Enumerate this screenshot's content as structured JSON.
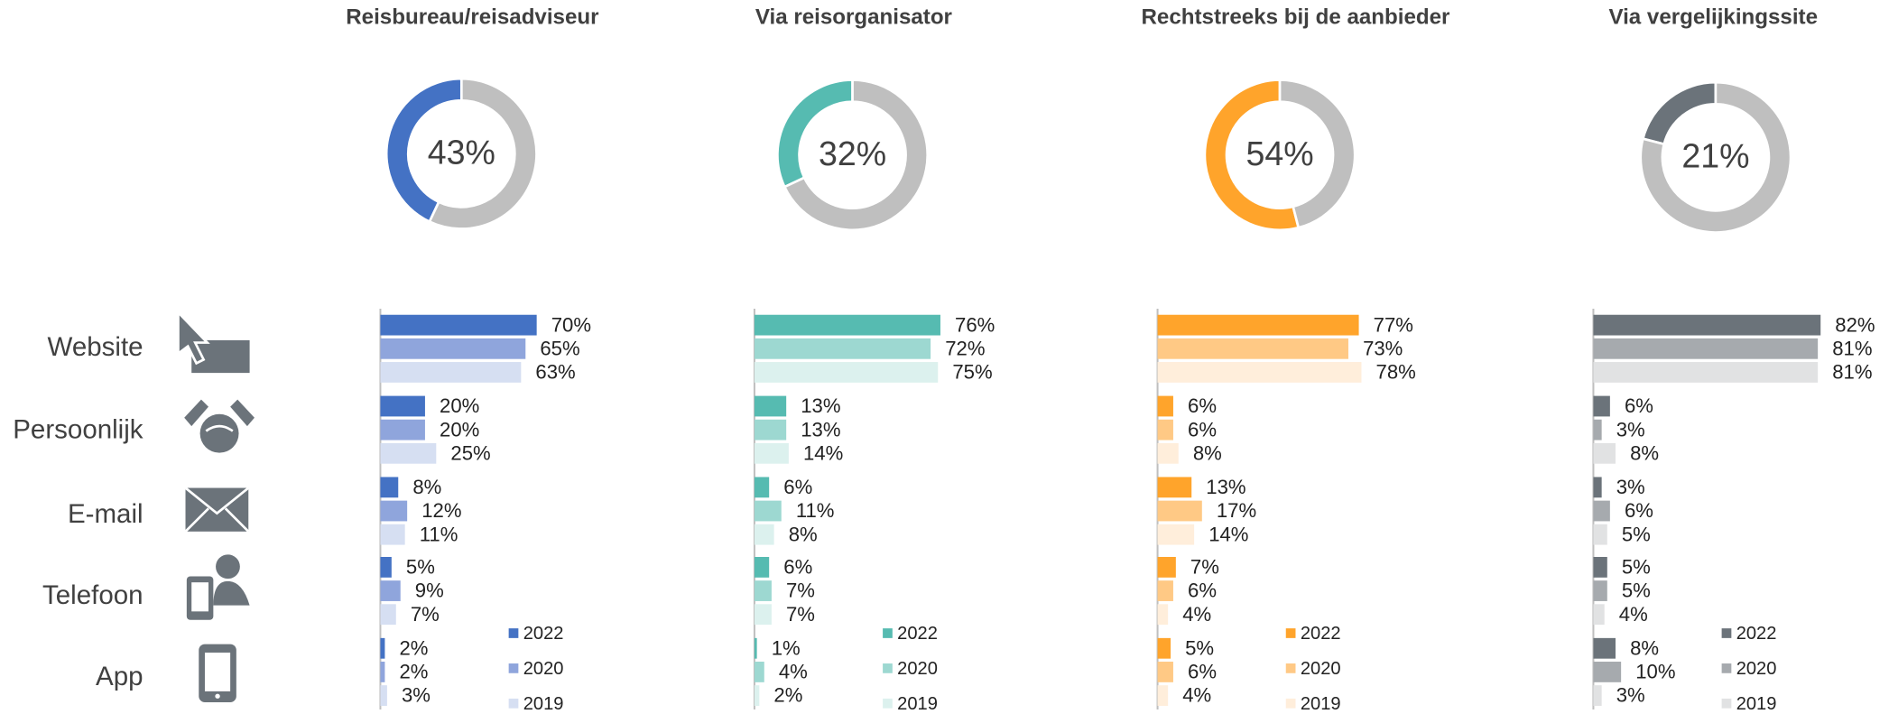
{
  "categories": [
    "Website",
    "Persoonlijk",
    "E-mail",
    "Telefoon",
    "App"
  ],
  "chart_data": [
    {
      "type": "bar",
      "title": "Reisbureau/reisadviseur",
      "donut": {
        "value": 43,
        "label": "43%"
      },
      "xlim": [
        0,
        103
      ],
      "series": [
        {
          "name": "2022",
          "color": "#4472c4",
          "values": [
            70,
            20,
            8,
            5,
            2
          ],
          "value_labels": [
            "70%",
            "20%",
            "8%",
            "5%",
            "2%"
          ]
        },
        {
          "name": "2020",
          "color": "#8fa5dc",
          "values": [
            65,
            20,
            12,
            9,
            2
          ],
          "value_labels": [
            "65%",
            "20%",
            "12%",
            "9%",
            "2%"
          ]
        },
        {
          "name": "2019",
          "color": "#d6dff2",
          "values": [
            63,
            25,
            11,
            7,
            3
          ],
          "value_labels": [
            "63%",
            "25%",
            "11%",
            "7%",
            "3%"
          ]
        }
      ]
    },
    {
      "type": "bar",
      "title": "Via reisorganisator",
      "donut": {
        "value": 32,
        "label": "32%"
      },
      "xlim": [
        0,
        94
      ],
      "series": [
        {
          "name": "2022",
          "color": "#56bbb1",
          "values": [
            76,
            13,
            6,
            6,
            1
          ],
          "value_labels": [
            "76%",
            "13%",
            "6%",
            "6%",
            "1%"
          ]
        },
        {
          "name": "2020",
          "color": "#9dd8d1",
          "values": [
            72,
            13,
            11,
            7,
            4
          ],
          "value_labels": [
            "72%",
            "13%",
            "11%",
            "7%",
            "4%"
          ]
        },
        {
          "name": "2019",
          "color": "#dcf1ee",
          "values": [
            75,
            14,
            8,
            7,
            2
          ],
          "value_labels": [
            "75%",
            "14%",
            "8%",
            "7%",
            "2%"
          ]
        }
      ]
    },
    {
      "type": "bar",
      "title": "Rechtstreeks bij de aanbieder",
      "donut": {
        "value": 54,
        "label": "54%"
      },
      "xlim": [
        0,
        88
      ],
      "series": [
        {
          "name": "2022",
          "color": "#ffa42b",
          "values": [
            77,
            6,
            13,
            7,
            5
          ],
          "value_labels": [
            "77%",
            "6%",
            "13%",
            "7%",
            "5%"
          ]
        },
        {
          "name": "2020",
          "color": "#ffc985",
          "values": [
            73,
            6,
            17,
            6,
            6
          ],
          "value_labels": [
            "73%",
            "6%",
            "17%",
            "6%",
            "6%"
          ]
        },
        {
          "name": "2019",
          "color": "#ffeedb",
          "values": [
            78,
            8,
            14,
            4,
            4
          ],
          "value_labels": [
            "78%",
            "8%",
            "14%",
            "4%",
            "4%"
          ]
        }
      ]
    },
    {
      "type": "bar",
      "title": "Via vergelijkingssite",
      "donut": {
        "value": 21,
        "label": "21%"
      },
      "xlim": [
        0,
        83
      ],
      "series": [
        {
          "name": "2022",
          "color": "#6b737a",
          "values": [
            82,
            6,
            3,
            5,
            8
          ],
          "value_labels": [
            "82%",
            "6%",
            "3%",
            "5%",
            "8%"
          ]
        },
        {
          "name": "2020",
          "color": "#a6aaae",
          "values": [
            81,
            3,
            6,
            5,
            10
          ],
          "value_labels": [
            "81%",
            "3%",
            "6%",
            "5%",
            "10%"
          ]
        },
        {
          "name": "2019",
          "color": "#e1e2e3",
          "values": [
            81,
            8,
            5,
            4,
            3
          ],
          "value_labels": [
            "81%",
            "8%",
            "5%",
            "4%",
            "3%"
          ]
        }
      ]
    }
  ]
}
